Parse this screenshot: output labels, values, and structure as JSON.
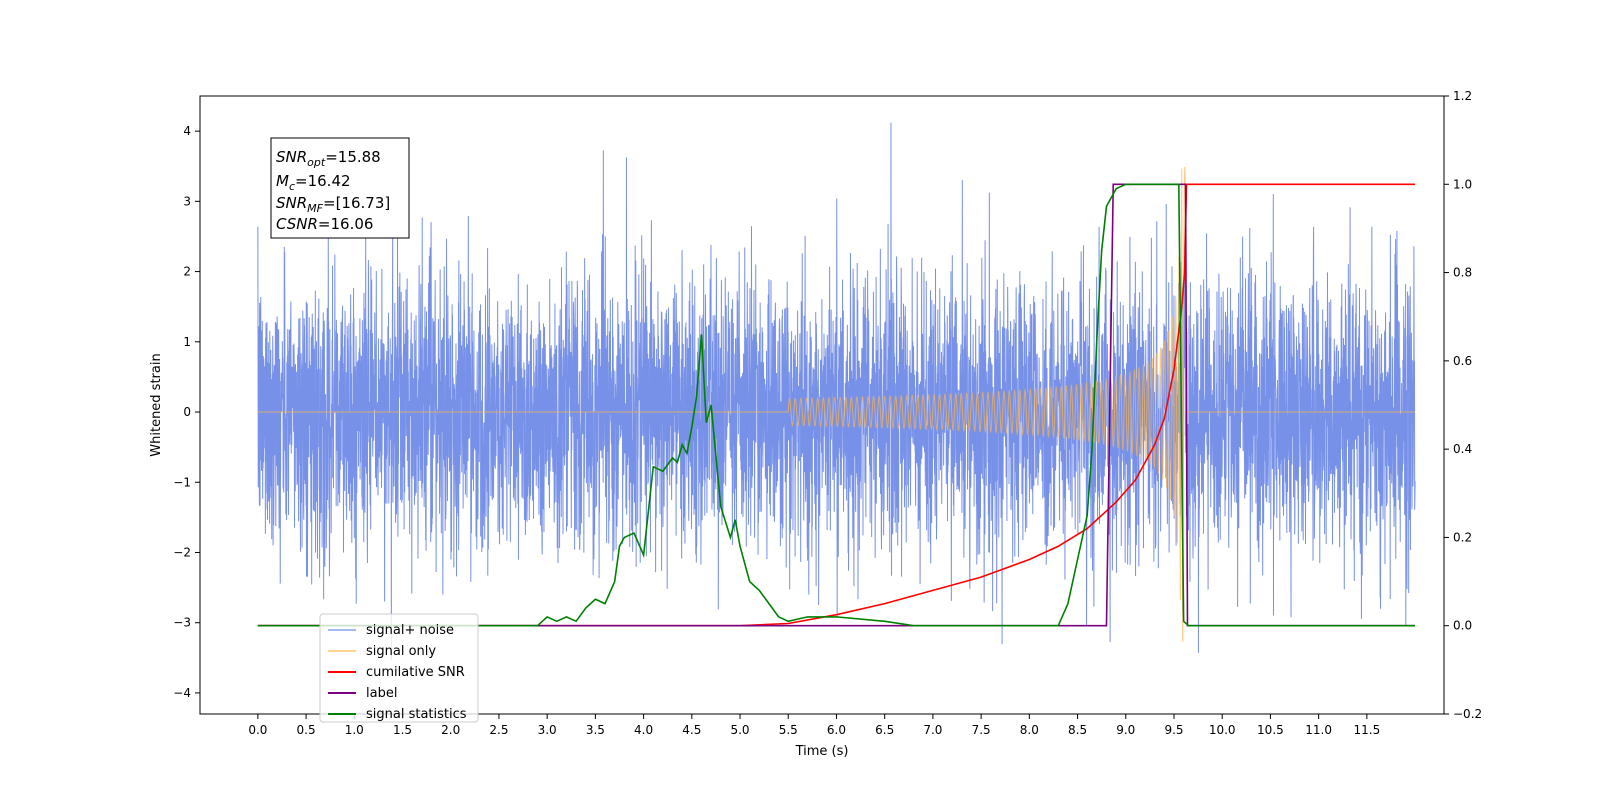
{
  "chart_data": {
    "type": "line",
    "xlabel": "Time (s)",
    "ylabel": "Whitened strain",
    "xlim": [
      -0.6,
      12.3
    ],
    "ylim": [
      -4.3,
      4.5
    ],
    "y2lim": [
      -0.2,
      1.2
    ],
    "x_ticks": [
      "0.0",
      "0.5",
      "1.0",
      "1.5",
      "2.0",
      "2.5",
      "3.0",
      "3.5",
      "4.0",
      "4.5",
      "5.0",
      "5.5",
      "6.0",
      "6.5",
      "7.0",
      "7.5",
      "8.0",
      "8.5",
      "9.0",
      "9.5",
      "10.0",
      "10.5",
      "11.0",
      "11.5"
    ],
    "y_ticks": [
      "4",
      "3",
      "2",
      "1",
      "0",
      "−1",
      "−2",
      "−3",
      "−4"
    ],
    "y2_ticks": [
      "1.2",
      "1.0",
      "0.8",
      "0.6",
      "0.4",
      "0.2",
      "0.0",
      "−0.2"
    ],
    "legend_placement": "lower-left",
    "annotation": [
      {
        "base": "SNR",
        "sub": "opt",
        "value": "=15.88"
      },
      {
        "base": "M",
        "sub": "c",
        "value": "=16.42"
      },
      {
        "base": "SNR",
        "sub": "MF",
        "value": "=[16.73]"
      },
      {
        "base": "CSNR",
        "sub": "",
        "value": "=16.06"
      }
    ],
    "series": [
      {
        "name": "signal+ noise",
        "axis": "left",
        "color": "#6b88e6",
        "description_range": [
          -3.9,
          4.12
        ],
        "time_range": [
          0.0,
          12.0
        ]
      },
      {
        "name": "signal only",
        "axis": "left",
        "color": "#ffb347",
        "chirp_start": 5.5,
        "merger_time": 9.6,
        "peak_amplitude": 3.5
      },
      {
        "name": "cumilative SNR",
        "axis": "right",
        "color": "#ff0000",
        "x": [
          0.0,
          5.0,
          5.5,
          6.0,
          6.5,
          7.0,
          7.5,
          8.0,
          8.3,
          8.6,
          8.9,
          9.1,
          9.3,
          9.4,
          9.5,
          9.58,
          9.61,
          9.63,
          12.0
        ],
        "y": [
          0.0,
          0.0,
          0.005,
          0.025,
          0.05,
          0.08,
          0.11,
          0.15,
          0.18,
          0.22,
          0.28,
          0.33,
          0.41,
          0.47,
          0.58,
          0.72,
          0.8,
          1.0,
          1.0
        ]
      },
      {
        "name": "label",
        "axis": "right",
        "color": "#7b0080",
        "x": [
          0.0,
          8.8,
          8.87,
          9.62,
          9.64,
          12.0
        ],
        "y": [
          0.0,
          0.0,
          1.0,
          1.0,
          0.0,
          0.0
        ]
      },
      {
        "name": "signal statistics",
        "axis": "right",
        "color": "#008000",
        "x": [
          0.0,
          2.9,
          3.0,
          3.1,
          3.2,
          3.3,
          3.4,
          3.5,
          3.6,
          3.7,
          3.75,
          3.8,
          3.9,
          4.0,
          4.1,
          4.2,
          4.3,
          4.35,
          4.4,
          4.45,
          4.5,
          4.55,
          4.6,
          4.65,
          4.7,
          4.8,
          4.9,
          4.95,
          5.0,
          5.1,
          5.2,
          5.3,
          5.4,
          5.5,
          5.7,
          6.0,
          6.5,
          6.8,
          8.3,
          8.4,
          8.5,
          8.6,
          8.65,
          8.7,
          8.75,
          8.8,
          8.9,
          9.0,
          9.55,
          9.6,
          9.65,
          12.0
        ],
        "y": [
          0.0,
          0.0,
          0.02,
          0.01,
          0.02,
          0.01,
          0.04,
          0.06,
          0.05,
          0.1,
          0.18,
          0.2,
          0.21,
          0.16,
          0.36,
          0.35,
          0.38,
          0.37,
          0.41,
          0.39,
          0.45,
          0.52,
          0.66,
          0.46,
          0.5,
          0.27,
          0.2,
          0.24,
          0.18,
          0.1,
          0.08,
          0.05,
          0.02,
          0.01,
          0.02,
          0.02,
          0.01,
          0.0,
          0.0,
          0.05,
          0.15,
          0.25,
          0.4,
          0.65,
          0.85,
          0.95,
          0.99,
          1.0,
          1.0,
          0.01,
          0.0,
          0.0
        ]
      }
    ]
  }
}
